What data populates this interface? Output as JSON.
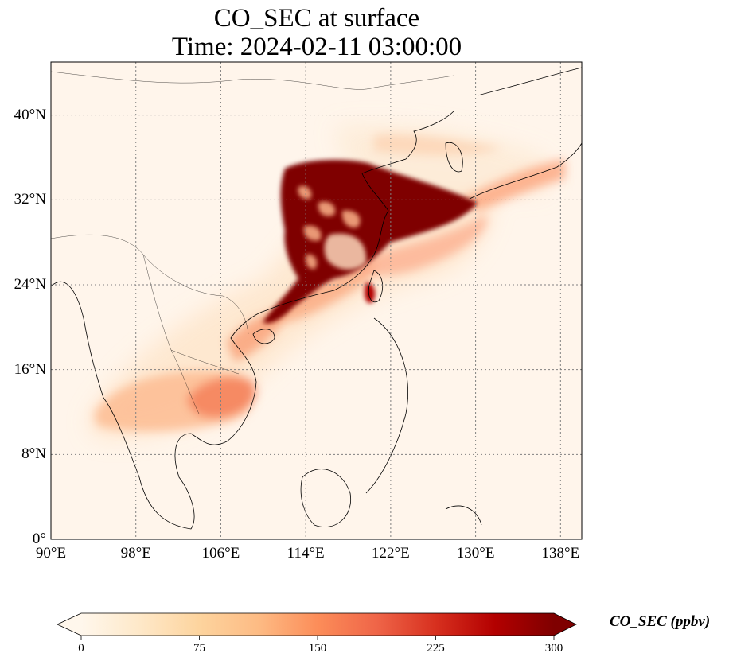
{
  "title": {
    "line1": "CO_SEC at surface",
    "line2": "Time: 2024-02-11 03:00:00"
  },
  "map": {
    "extent_lon": [
      90,
      140
    ],
    "extent_lat": [
      0,
      45
    ],
    "lat_ticks": [
      {
        "value": 0,
        "label": "0°"
      },
      {
        "value": 8,
        "label": "8°N"
      },
      {
        "value": 16,
        "label": "16°N"
      },
      {
        "value": 24,
        "label": "24°N"
      },
      {
        "value": 32,
        "label": "32°N"
      },
      {
        "value": 40,
        "label": "40°N"
      }
    ],
    "lon_ticks": [
      {
        "value": 90,
        "label": "90°E"
      },
      {
        "value": 98,
        "label": "98°E"
      },
      {
        "value": 106,
        "label": "106°E"
      },
      {
        "value": 114,
        "label": "114°E"
      },
      {
        "value": 122,
        "label": "122°E"
      },
      {
        "value": 130,
        "label": "130°E"
      },
      {
        "value": 138,
        "label": "138°E"
      }
    ],
    "gridlines": true,
    "background_color": "#fff5eb",
    "high_concentration_color": "#7f0000"
  },
  "colorbar": {
    "label": "CO_SEC (ppbv)",
    "colormap": "OrRd",
    "min": 0,
    "max": 300,
    "extend": "both",
    "ticks": [
      {
        "value": 0,
        "label": "0"
      },
      {
        "value": 75,
        "label": "75"
      },
      {
        "value": 150,
        "label": "150"
      },
      {
        "value": 225,
        "label": "225"
      },
      {
        "value": 300,
        "label": "300"
      }
    ],
    "stops": [
      "#fff7ec",
      "#fee8c8",
      "#fdd49e",
      "#fdbb84",
      "#fc8d59",
      "#ef6548",
      "#d7301f",
      "#b30000",
      "#7f0000"
    ]
  }
}
